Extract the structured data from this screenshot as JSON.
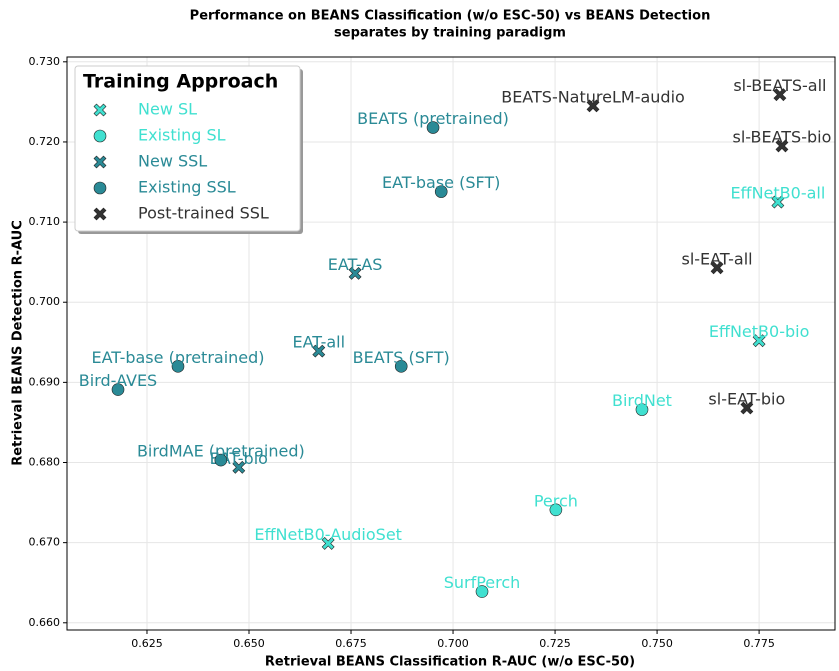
{
  "chart_data": {
    "type": "scatter",
    "title": [
      "Performance on BEANS Classification (w/o ESC-50) vs BEANS Detection",
      "separates by training paradigm"
    ],
    "x_label": "Retrieval BEANS Classification R-AUC (w/o ESC-50)",
    "y_label": "Retrieval BEANS Detection R-AUC",
    "legend_title": "Training Approach",
    "legend_position": "upper left",
    "grid": true,
    "xlim": [
      0.6054,
      0.7936
    ],
    "ylim": [
      0.6591,
      0.7306
    ],
    "xticks": [
      0.625,
      {
        "value": 0.65,
        "label": "0.650"
      },
      0.675,
      {
        "value": 0.7,
        "label": "0.700"
      },
      0.725,
      {
        "value": 0.75,
        "label": "0.750"
      },
      0.775
    ],
    "yticks": [
      {
        "value": 0.66,
        "label": "0.660"
      },
      {
        "value": 0.67,
        "label": "0.670"
      },
      {
        "value": 0.68,
        "label": "0.680"
      },
      {
        "value": 0.69,
        "label": "0.690"
      },
      {
        "value": 0.7,
        "label": "0.700"
      },
      {
        "value": 0.71,
        "label": "0.710"
      },
      {
        "value": 0.72,
        "label": "0.720"
      },
      {
        "value": 0.73,
        "label": "0.730"
      }
    ],
    "series": [
      {
        "name": "New SL",
        "color": "#40E0D0",
        "marker": "X",
        "labels": [
          "EffNetB0-AudioSet",
          "EffNetB0-bio",
          "EffNetB0-all"
        ],
        "x": [
          0.6694,
          0.775,
          0.7796
        ],
        "values": [
          0.6699,
          0.6952,
          0.7125
        ]
      },
      {
        "name": "Existing SL",
        "color": "#40E0D0",
        "marker": "o",
        "labels": [
          "BirdNet",
          "Perch",
          "SurfPerch"
        ],
        "x": [
          0.7463,
          0.7252,
          0.7071
        ],
        "values": [
          0.6866,
          0.6741,
          0.6639
        ]
      },
      {
        "name": "New SSL",
        "color": "#2A8A96",
        "marker": "X",
        "labels": [
          "EAT-AS",
          "EAT-all",
          "EAT-bio"
        ],
        "x": [
          0.676,
          0.6671,
          0.6475
        ],
        "values": [
          0.7036,
          0.6939,
          0.6794
        ]
      },
      {
        "name": "Existing SSL",
        "color": "#2A8A96",
        "marker": "o",
        "labels": [
          "BEATS (pretrained)",
          "EAT-base (SFT)",
          "BEATS (SFT)",
          "EAT-base (pretrained)",
          "Bird-AVES",
          "BirdMAE (pretrained)"
        ],
        "x": [
          0.6951,
          0.6971,
          0.6873,
          0.6326,
          0.6179,
          0.6431
        ],
        "values": [
          0.7218,
          0.7138,
          0.692,
          0.692,
          0.6891,
          0.6803
        ]
      },
      {
        "name": "Post-trained SSL",
        "color": "#333333",
        "marker": "X",
        "labels": [
          "BEATS-NatureLM-audio",
          "sl-BEATS-all",
          "sl-BEATS-bio",
          "sl-EAT-all",
          "sl-EAT-bio"
        ],
        "x": [
          0.7343,
          0.7801,
          0.7806,
          0.7647,
          0.772
        ],
        "values": [
          0.7245,
          0.7259,
          0.7195,
          0.7043,
          0.6868
        ]
      }
    ]
  }
}
